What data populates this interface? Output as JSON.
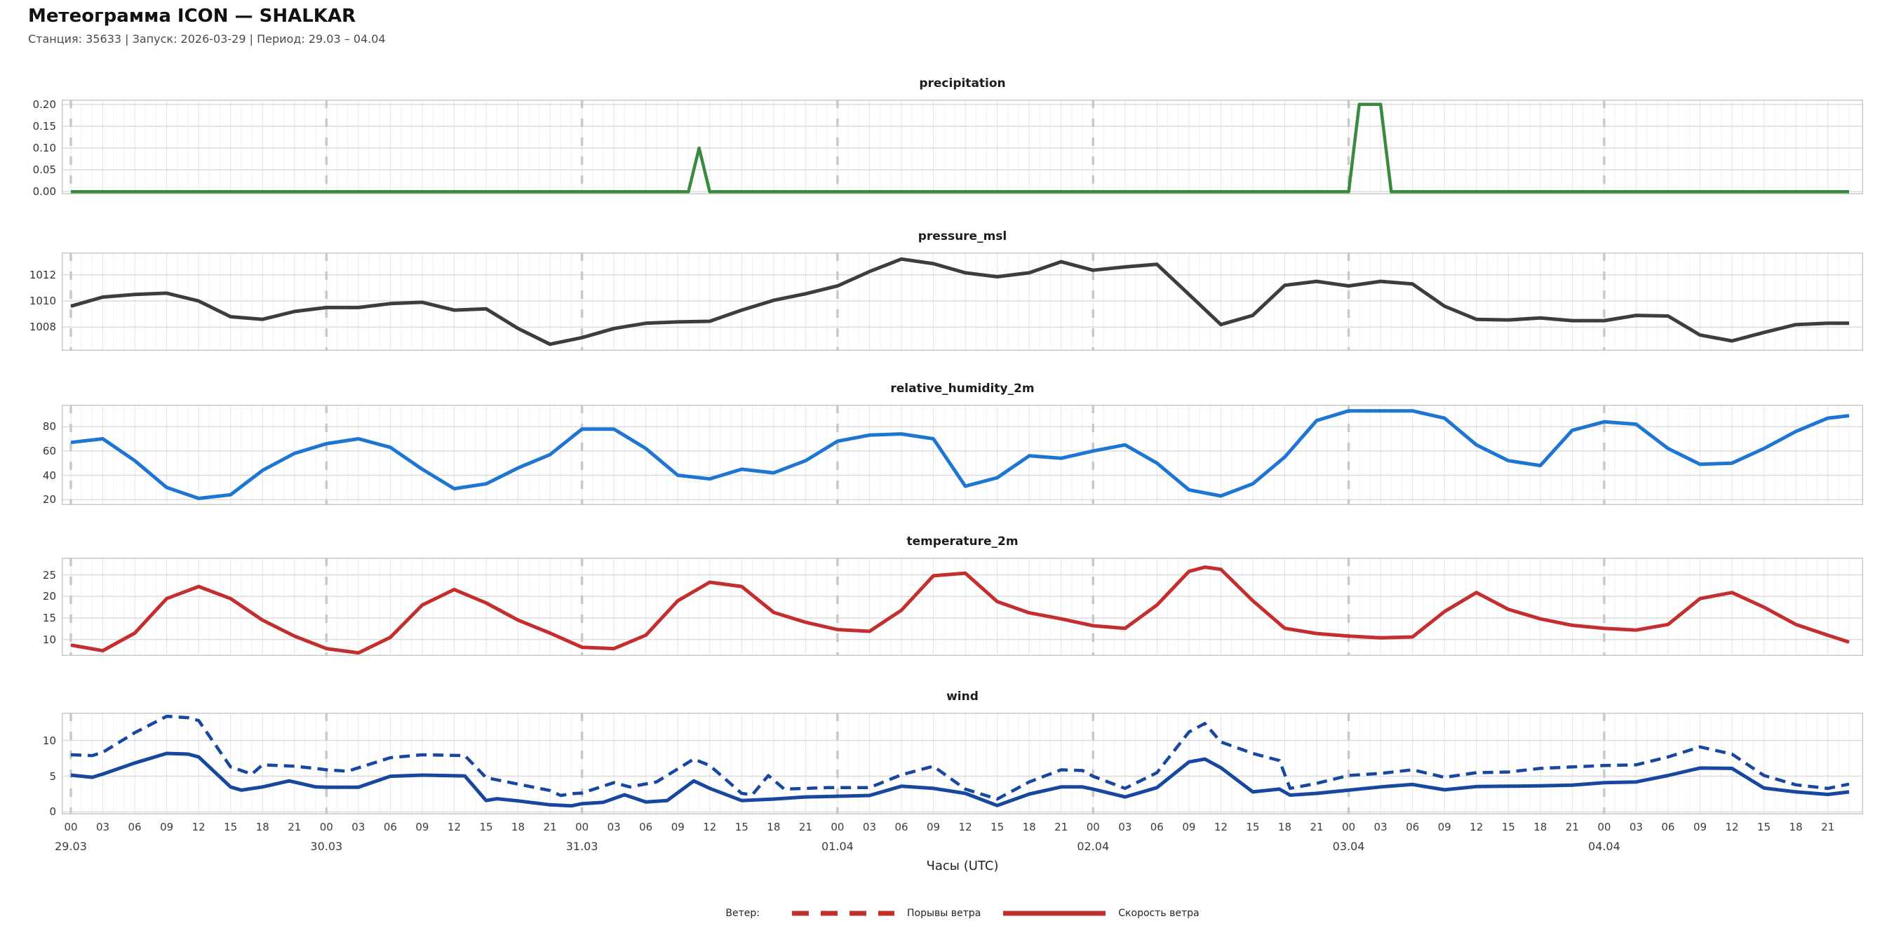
{
  "header": {
    "title": "Метеограмма ICON — SHALKAR",
    "subtitle": "Станция: 35633  | Запуск: 2026-03-29  | Период: 29.03 – 04.04"
  },
  "xaxis": {
    "label": "Часы (UTC)",
    "hour_labels": [
      "00",
      "03",
      "06",
      "09",
      "12",
      "15",
      "18",
      "21"
    ],
    "days": [
      "29.03",
      "30.03",
      "31.03",
      "01.04",
      "02.04",
      "03.04",
      "04.04"
    ],
    "hours_total": 167
  },
  "legend": {
    "title": "Ветер:",
    "items": [
      {
        "label": "Порывы ветра",
        "style": "dashed",
        "color": "#c0302c"
      },
      {
        "label": "Скорость ветра",
        "style": "solid",
        "color": "#c0302c"
      }
    ]
  },
  "colors": {
    "precipitation": "#388a3c",
    "pressure": "#3d3d3d",
    "humidity": "#1f76d2",
    "temperature": "#c32e2e",
    "wind": "#17479e",
    "grid_minor": "#f0f0f0",
    "grid_major": "#e3e3e3",
    "grid_h": "#dcdcdc",
    "day_line": "#c9c9c9",
    "border": "#c9c9c9"
  },
  "chart_data": [
    {
      "type": "line",
      "title": "precipitation",
      "ylim": [
        -0.006,
        0.211
      ],
      "yticks": [
        0,
        0.05,
        0.1,
        0.15,
        0.2
      ],
      "ytick_labels": [
        "0.00",
        "0.05",
        "0.10",
        "0.15",
        "0.20"
      ],
      "series": [
        {
          "name": "precipitation",
          "color": "#388a3c",
          "style": "solid",
          "width": 4.5,
          "x": [
            0,
            57,
            58,
            59,
            60,
            61,
            119,
            120,
            121,
            123,
            124,
            125,
            167
          ],
          "y": [
            0,
            0,
            0,
            0.1,
            0,
            0,
            0,
            0,
            0.2,
            0.2,
            0,
            0,
            0
          ]
        }
      ]
    },
    {
      "type": "line",
      "title": "pressure_msl",
      "ylim": [
        1006.2,
        1013.7
      ],
      "yticks": [
        1008,
        1010,
        1012
      ],
      "ytick_labels": [
        "1008",
        "1010",
        "1012"
      ],
      "series": [
        {
          "name": "pressure_msl",
          "color": "#3d3d3d",
          "style": "solid",
          "width": 5,
          "x": [
            0,
            3,
            6,
            9,
            12,
            15,
            18,
            21,
            24,
            27,
            30,
            33,
            36,
            39,
            42,
            45,
            48,
            51,
            54,
            57,
            60,
            63,
            66,
            69,
            72,
            75,
            78,
            81,
            84,
            87,
            90,
            93,
            96,
            99,
            102,
            105,
            108,
            111,
            114,
            117,
            120,
            123,
            126,
            129,
            132,
            135,
            138,
            141,
            144,
            147,
            150,
            153,
            156,
            159,
            162,
            165,
            167
          ],
          "y": [
            1009.6,
            1010.3,
            1010.5,
            1010.6,
            1010.0,
            1008.8,
            1008.6,
            1009.2,
            1009.5,
            1009.5,
            1009.8,
            1009.9,
            1009.3,
            1009.4,
            1007.9,
            1006.7,
            1007.2,
            1007.9,
            1008.3,
            1008.4,
            1008.45,
            1009.3,
            1010.05,
            1010.55,
            1011.15,
            1012.25,
            1013.2,
            1012.85,
            1012.15,
            1011.85,
            1012.15,
            1013.0,
            1012.35,
            1012.6,
            1012.8,
            1010.5,
            1008.2,
            1008.9,
            1011.2,
            1011.5,
            1011.15,
            1011.5,
            1011.3,
            1009.6,
            1008.6,
            1008.55,
            1008.7,
            1008.5,
            1008.5,
            1008.9,
            1008.85,
            1007.4,
            1006.95,
            1007.6,
            1008.2,
            1008.3,
            1008.3
          ]
        }
      ]
    },
    {
      "type": "line",
      "title": "relative_humidity_2m",
      "ylim": [
        15.5,
        98
      ],
      "yticks": [
        20,
        40,
        60,
        80
      ],
      "ytick_labels": [
        "20",
        "40",
        "60",
        "80"
      ],
      "series": [
        {
          "name": "relative_humidity_2m",
          "color": "#1f76d2",
          "style": "solid",
          "width": 5,
          "x": [
            0,
            3,
            6,
            9,
            12,
            15,
            18,
            21,
            24,
            27,
            30,
            33,
            36,
            39,
            42,
            45,
            48,
            51,
            54,
            57,
            60,
            63,
            66,
            69,
            72,
            75,
            78,
            81,
            84,
            87,
            90,
            93,
            96,
            99,
            102,
            105,
            108,
            111,
            114,
            117,
            120,
            123,
            126,
            129,
            132,
            135,
            138,
            141,
            144,
            147,
            150,
            153,
            156,
            159,
            162,
            165,
            167
          ],
          "y": [
            67,
            70,
            52,
            30,
            21,
            24,
            44,
            58,
            66,
            70,
            63,
            45,
            29,
            33,
            46,
            57,
            78,
            78,
            62,
            40,
            37,
            45,
            42,
            52,
            68,
            73,
            74,
            70,
            31,
            38,
            56,
            54,
            60,
            65,
            50,
            28,
            23,
            33,
            55,
            85,
            93,
            93,
            93,
            87,
            65,
            52,
            48,
            77,
            84,
            82,
            62,
            49,
            50,
            62,
            76,
            87,
            89
          ]
        }
      ]
    },
    {
      "type": "line",
      "title": "temperature_2m",
      "ylim": [
        6.2,
        29.0
      ],
      "yticks": [
        10,
        15,
        20,
        25
      ],
      "ytick_labels": [
        "10",
        "15",
        "20",
        "25"
      ],
      "series": [
        {
          "name": "temperature_2m",
          "color": "#c32e2e",
          "style": "solid",
          "width": 5,
          "x": [
            0,
            3,
            6,
            9,
            12,
            15,
            18,
            21,
            24,
            27,
            30,
            33,
            36,
            39,
            42,
            45,
            48,
            51,
            54,
            57,
            60,
            63,
            66,
            69,
            72,
            75,
            78,
            81,
            84,
            87,
            90,
            93,
            96,
            99,
            102,
            105,
            106.5,
            108,
            111,
            114,
            117,
            120,
            123,
            126,
            129,
            132,
            135,
            138,
            141,
            144,
            147,
            150,
            153,
            156,
            159,
            162,
            165,
            167
          ],
          "y": [
            8.7,
            7.4,
            11.5,
            19.5,
            22.3,
            19.5,
            14.5,
            10.8,
            7.9,
            6.9,
            10.5,
            18.0,
            21.6,
            18.5,
            14.5,
            11.5,
            8.2,
            7.9,
            11.0,
            19.0,
            23.3,
            22.3,
            16.3,
            14.0,
            12.3,
            11.9,
            16.8,
            24.8,
            25.4,
            18.8,
            16.2,
            14.8,
            13.2,
            12.6,
            18.0,
            25.8,
            26.8,
            26.3,
            19.0,
            12.6,
            11.4,
            10.8,
            10.4,
            10.6,
            16.5,
            20.9,
            17.0,
            14.8,
            13.3,
            12.6,
            12.2,
            13.5,
            19.5,
            20.9,
            17.5,
            13.5,
            11.0,
            9.4
          ]
        }
      ]
    },
    {
      "type": "line",
      "title": "wind",
      "ylim": [
        -0.35,
        13.9
      ],
      "yticks": [
        0,
        5,
        10
      ],
      "ytick_labels": [
        "0",
        "5",
        "10"
      ],
      "series": [
        {
          "name": "wind_gusts",
          "color": "#17479e",
          "style": "dashed",
          "width": 4.5,
          "x": [
            0,
            2,
            3,
            6,
            9,
            11,
            12,
            15,
            17,
            18,
            21,
            23,
            24,
            26,
            30,
            33,
            37,
            39,
            42,
            45,
            46,
            47,
            48,
            51,
            52.5,
            55,
            58.5,
            60,
            63,
            64,
            65.5,
            67,
            69,
            71,
            72,
            75,
            78,
            81,
            84,
            87,
            90,
            93,
            95,
            96,
            99,
            102,
            105,
            106.5,
            108,
            111,
            113.5,
            114.5,
            117,
            120,
            123,
            126,
            129,
            132,
            135,
            138,
            141,
            144,
            147,
            150,
            153,
            156,
            159,
            162,
            165,
            167
          ],
          "y": [
            8.0,
            7.9,
            8.35,
            11.1,
            13.4,
            13.2,
            12.8,
            6.3,
            5.3,
            6.6,
            6.4,
            6.1,
            5.9,
            5.7,
            7.6,
            8.0,
            7.9,
            4.8,
            3.9,
            3.0,
            2.3,
            2.55,
            2.65,
            4.1,
            3.5,
            4.2,
            7.4,
            6.5,
            2.6,
            2.4,
            5.1,
            3.2,
            3.3,
            3.4,
            3.4,
            3.4,
            5.2,
            6.4,
            3.2,
            1.8,
            4.2,
            5.9,
            5.8,
            5.0,
            3.3,
            5.5,
            11.2,
            12.4,
            9.8,
            8.2,
            7.2,
            3.3,
            4.0,
            5.1,
            5.4,
            5.9,
            4.85,
            5.5,
            5.6,
            6.1,
            6.3,
            6.5,
            6.6,
            7.7,
            9.1,
            8.1,
            5.1,
            3.8,
            3.3,
            3.9
          ]
        },
        {
          "name": "wind_speed",
          "color": "#17479e",
          "style": "solid",
          "width": 5,
          "x": [
            0,
            2,
            3,
            6,
            9,
            11,
            12,
            15,
            16,
            18,
            20.5,
            23,
            24,
            27,
            30,
            33,
            37,
            39,
            40,
            42,
            45,
            47,
            48,
            50,
            52,
            54,
            56,
            58.5,
            60,
            63,
            66,
            69,
            72,
            75,
            78,
            81,
            84,
            87,
            90,
            93,
            95,
            96,
            99,
            102,
            105,
            106.5,
            108,
            111,
            113.5,
            114.5,
            117,
            120,
            123,
            126,
            129,
            132,
            135,
            138,
            141,
            144,
            147,
            150,
            153,
            156,
            159,
            162,
            165,
            167
          ],
          "y": [
            5.15,
            4.85,
            5.3,
            6.85,
            8.2,
            8.1,
            7.7,
            3.5,
            3.05,
            3.5,
            4.35,
            3.5,
            3.45,
            3.45,
            5.0,
            5.15,
            5.05,
            1.6,
            1.85,
            1.55,
            1.0,
            0.85,
            1.15,
            1.35,
            2.4,
            1.4,
            1.6,
            4.35,
            3.3,
            1.6,
            1.8,
            2.1,
            2.2,
            2.3,
            3.6,
            3.3,
            2.6,
            0.9,
            2.5,
            3.5,
            3.5,
            3.2,
            2.1,
            3.4,
            7.0,
            7.4,
            6.2,
            2.8,
            3.2,
            2.35,
            2.6,
            3.05,
            3.5,
            3.85,
            3.1,
            3.55,
            3.6,
            3.65,
            3.75,
            4.1,
            4.2,
            5.1,
            6.15,
            6.1,
            3.35,
            2.8,
            2.45,
            2.8
          ]
        }
      ]
    }
  ]
}
